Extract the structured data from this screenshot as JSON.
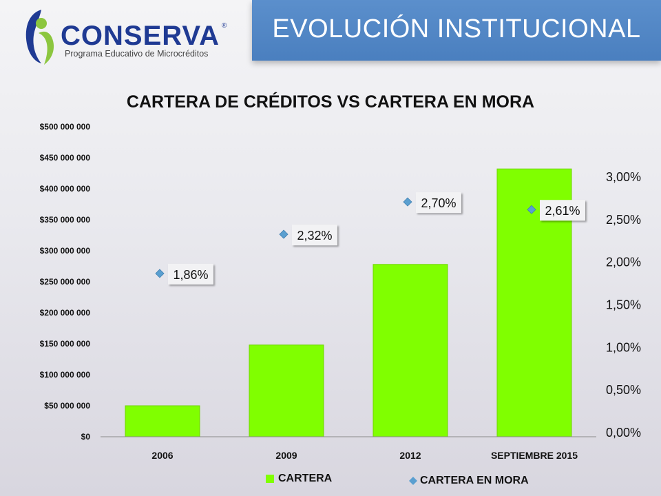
{
  "header": {
    "title": "EVOLUCIÓN INSTITUCIONAL"
  },
  "logo": {
    "word": "CONSERVA",
    "registered": "®",
    "tagline": "Programa Educativo de Microcréditos"
  },
  "colors": {
    "bar": "#80ff00",
    "marker": "#5a9fd0",
    "header": "#4a7fbf",
    "logo_blue": "#1f3a93",
    "logo_green": "#8cc63f"
  },
  "chart_data": {
    "type": "bar",
    "title": "CARTERA DE CRÉDITOS VS CARTERA EN MORA",
    "categories": [
      "2006",
      "2009",
      "2012",
      "SEPTIEMBRE 2015"
    ],
    "series": [
      {
        "name": "CARTERA",
        "type": "bar",
        "axis": "left",
        "values": [
          50000000,
          148000000,
          278000000,
          432000000
        ]
      },
      {
        "name": "CARTERA EN MORA",
        "type": "scatter",
        "axis": "right",
        "values": [
          1.86,
          2.32,
          2.7,
          2.61
        ],
        "labels": [
          "1,86%",
          "2,32%",
          "2,70%",
          "2,61%"
        ]
      }
    ],
    "y_left": {
      "ylim": [
        0,
        500000000
      ],
      "ticks": [
        "$0",
        "$50 000 000",
        "$100 000 000",
        "$150 000 000",
        "$200 000 000",
        "$250 000 000",
        "$300 000 000",
        "$350 000 000",
        "$400 000 000",
        "$450 000 000",
        "$500 000 000"
      ]
    },
    "y_right": {
      "ylim": [
        0,
        3.0
      ],
      "ticks": [
        "0,00%",
        "0,50%",
        "1,00%",
        "1,50%",
        "2,00%",
        "2,50%",
        "3,00%"
      ]
    },
    "grid": false,
    "legend": "bottom"
  },
  "legend": {
    "bar_label": "CARTERA",
    "marker_label": "CARTERA EN MORA"
  }
}
